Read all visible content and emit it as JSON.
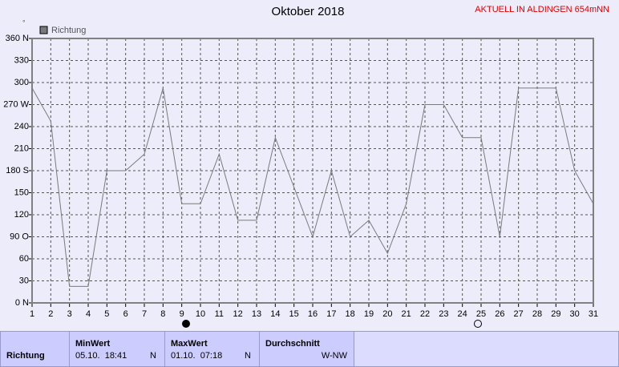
{
  "chart_data": {
    "type": "line",
    "title": "Oktober 2018",
    "note": "AKTUELL IN ALDINGEN 654mNN",
    "unit": "°",
    "x": [
      1,
      2,
      3,
      4,
      5,
      6,
      7,
      8,
      9,
      10,
      11,
      12,
      13,
      14,
      15,
      16,
      17,
      18,
      19,
      20,
      21,
      22,
      23,
      24,
      25,
      26,
      27,
      28,
      29,
      30,
      31
    ],
    "series": [
      {
        "name": "Richtung",
        "color": "#7a7a7a",
        "values": [
          292.5,
          247.5,
          22.5,
          22.5,
          180,
          180,
          202.5,
          292.5,
          135,
          135,
          202.5,
          112.5,
          112.5,
          225,
          157.5,
          90,
          180,
          90,
          112.5,
          67.5,
          135,
          270,
          270,
          225,
          225,
          90,
          292.5,
          292.5,
          292.5,
          180,
          135
        ]
      }
    ],
    "xlim": [
      1,
      31
    ],
    "xticks": [
      1,
      2,
      3,
      4,
      5,
      6,
      7,
      8,
      9,
      10,
      11,
      12,
      13,
      14,
      15,
      16,
      17,
      18,
      19,
      20,
      21,
      22,
      23,
      24,
      25,
      26,
      27,
      28,
      29,
      30,
      31
    ],
    "ylim": [
      0,
      360
    ],
    "yticks": [
      {
        "value": 0,
        "label": "0 N"
      },
      30,
      60,
      {
        "value": 90,
        "label": "90 O"
      },
      120,
      150,
      {
        "value": 180,
        "label": "180 S"
      },
      210,
      240,
      {
        "value": 270,
        "label": "270 W"
      },
      300,
      330,
      {
        "value": 360,
        "label": "360 N"
      }
    ],
    "grid": true
  },
  "table": {
    "row_label": "Richtung",
    "columns": [
      {
        "header": "MinWert",
        "time": "05.10.  18:41",
        "dir": "N"
      },
      {
        "header": "MaxWert",
        "time": "01.10.  07:18",
        "dir": "N"
      },
      {
        "header": "Durchschnitt",
        "dir": "W-NW"
      }
    ]
  }
}
